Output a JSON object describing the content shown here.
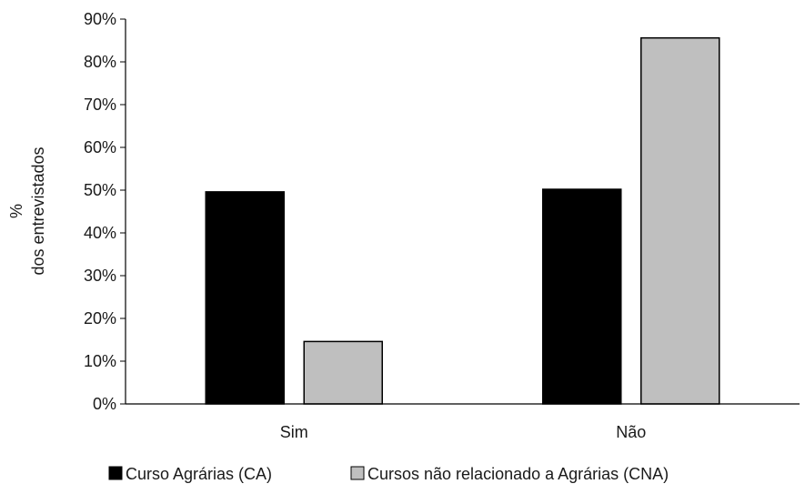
{
  "chart_data": {
    "type": "bar",
    "title": "",
    "ylabel_lines": [
      "%",
      "dos entrevistados"
    ],
    "xlabel": "",
    "categories": [
      "Sim",
      "Não"
    ],
    "series": [
      {
        "name": "Curso Agrárias (CA)",
        "color": "#000000",
        "values": [
          49.6,
          50.2
        ]
      },
      {
        "name": "Cursos não relacionado a Agrárias (CNA)",
        "color": "#bfbfbf",
        "values": [
          14.6,
          85.6
        ]
      }
    ],
    "ylim": [
      0,
      90
    ],
    "yticks": [
      0,
      10,
      20,
      30,
      40,
      50,
      60,
      70,
      80,
      90
    ],
    "ytick_labels": [
      "0%",
      "10%",
      "20%",
      "30%",
      "40%",
      "50%",
      "60%",
      "70%",
      "80%",
      "90%"
    ],
    "grid": false,
    "legend_position": "bottom"
  }
}
